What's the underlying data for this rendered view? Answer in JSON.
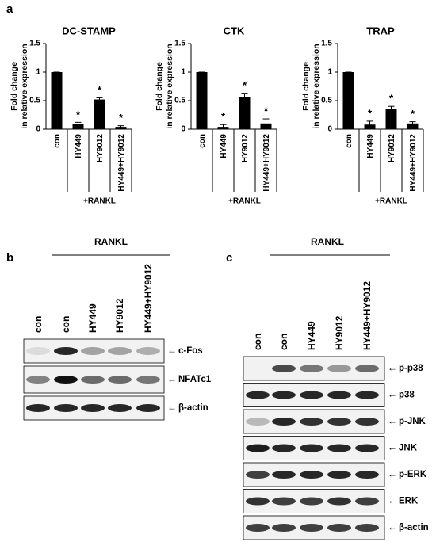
{
  "panel_labels": [
    "a",
    "b",
    "c"
  ],
  "chart_data": [
    {
      "type": "bar",
      "title": "DC-STAMP",
      "y_label": [
        "Fold change",
        "in relative expression"
      ],
      "categories": [
        "con",
        "HY449",
        "HY9012",
        "HY449+HY9012"
      ],
      "values": [
        1,
        0.09,
        0.52,
        0.04
      ],
      "errors": [
        0,
        0.03,
        0.03,
        0.02
      ],
      "significance": [
        null,
        "*",
        "*",
        "*"
      ],
      "group_label": "+RANKL",
      "color": "#000000",
      "ylim": [
        0,
        1.5
      ],
      "yticks": [
        0,
        0.5,
        1,
        1.5
      ]
    },
    {
      "type": "bar",
      "title": "CTK",
      "y_label": [
        "Fold change",
        "in relative expression"
      ],
      "categories": [
        "con",
        "HY449",
        "HY9012",
        "HY449+HY9012"
      ],
      "values": [
        1,
        0.04,
        0.56,
        0.1
      ],
      "errors": [
        0,
        0.04,
        0.07,
        0.08
      ],
      "significance": [
        null,
        "*",
        "*",
        "*"
      ],
      "group_label": "+RANKL",
      "color": "#000000",
      "ylim": [
        0,
        1.5
      ],
      "yticks": [
        0,
        0.5,
        1,
        1.5
      ]
    },
    {
      "type": "bar",
      "title": "TRAP",
      "y_label": [
        "Fold change",
        "in relative expression"
      ],
      "categories": [
        "con",
        "HY449",
        "HY9012",
        "HY449+HY9012"
      ],
      "values": [
        1,
        0.08,
        0.36,
        0.1
      ],
      "errors": [
        0,
        0.06,
        0.04,
        0.03
      ],
      "significance": [
        null,
        "*",
        "*",
        "*"
      ],
      "group_label": "+RANKL",
      "color": "#000000",
      "ylim": [
        0,
        1.5
      ],
      "yticks": [
        0,
        0.5,
        1,
        1.5
      ]
    }
  ],
  "blots": [
    {
      "header": "RANKL",
      "lanes": [
        "con",
        "con",
        "HY449",
        "HY9012",
        "HY449+HY9012"
      ],
      "rows": [
        "c-Fos",
        "NFATc1",
        "β-actin"
      ]
    },
    {
      "header": "RANKL",
      "lanes": [
        "con",
        "con",
        "HY449",
        "HY9012",
        "HY449+HY9012"
      ],
      "rows": [
        "p-p38",
        "p38",
        "p-JNK",
        "JNK",
        "p-ERK",
        "ERK",
        "β-actin"
      ]
    }
  ]
}
